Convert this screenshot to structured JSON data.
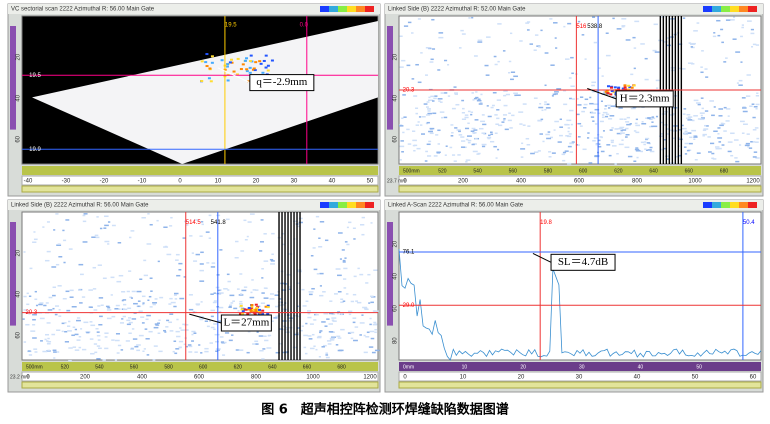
{
  "caption": "图 6　超声相控阵检测环焊缝缺陷数据图谱",
  "panels": [
    {
      "title": "VC sectorial scan 2222 Azimuthal  R: 56.00 Main Gate",
      "annotation": "q＝-2.9mm",
      "cursor_labels": [
        "0.0",
        "19.5",
        "19.5",
        "19.9"
      ],
      "y_ticks": [
        "20",
        "40",
        "60"
      ],
      "x_ticks": [
        "-40",
        "-30",
        "-20",
        "-10",
        "0",
        "10",
        "20",
        "30",
        "40",
        "50"
      ]
    },
    {
      "title": "Linked Side (B) 2222 Azimuthal  R: 52.00 Main Gate",
      "annotation": "H＝2.3mm",
      "cursor_labels": [
        "516",
        "538.8",
        "20.3"
      ],
      "y_ticks": [
        "20",
        "40",
        "60"
      ],
      "ruler": [
        "500mm",
        "520",
        "540",
        "560",
        "580",
        "600",
        "620",
        "640",
        "660",
        "680"
      ],
      "x_ticks": [
        "0",
        "200",
        "400",
        "600",
        "800",
        "1000",
        "1200"
      ],
      "depth": "23.7 mm"
    },
    {
      "title": "Linked Side (B) 2222 Azimuthal  R: 56.00 Main Gate",
      "annotation": "L＝27mm",
      "cursor_labels": [
        "514.5",
        "541.8",
        "20.3"
      ],
      "y_ticks": [
        "20",
        "40",
        "60"
      ],
      "ruler": [
        "500mm",
        "520",
        "540",
        "560",
        "580",
        "600",
        "620",
        "640",
        "660",
        "680"
      ],
      "x_ticks": [
        "0",
        "200",
        "400",
        "600",
        "800",
        "1000",
        "1200"
      ],
      "depth": "23.2 mm"
    },
    {
      "title": "Linked A-Scan 2222 Azimuthal  R: 56.00 Main Gate",
      "annotation": "SL＝4.7dB",
      "cursor_labels": [
        "19.8",
        "50.4",
        "76.1",
        "29.0"
      ],
      "y_ticks": [
        "20",
        "40",
        "60",
        "80"
      ],
      "ruler": [
        "0mm",
        "10",
        "20",
        "30",
        "40",
        "50"
      ],
      "x_ticks": [
        "0",
        "10",
        "20",
        "30",
        "40",
        "50",
        "60"
      ]
    }
  ]
}
